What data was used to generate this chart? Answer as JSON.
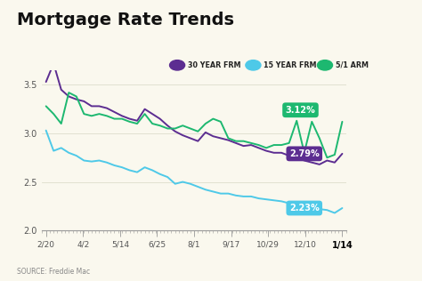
{
  "title": "Mortgage Rate Trends",
  "background_color": "#faf8ee",
  "source_text": "SOURCE: Freddie Mac",
  "x_labels": [
    "2/20",
    "4/2",
    "5/14",
    "6/25",
    "8/1",
    "9/17",
    "10/29",
    "12/10",
    "1/14"
  ],
  "ylim": [
    2.0,
    3.65
  ],
  "yticks": [
    2.0,
    2.5,
    3.0,
    3.5
  ],
  "legend_items": [
    "30 YEAR FRM",
    "15 YEAR FRM",
    "5/1 ARM"
  ],
  "legend_colors": [
    "#5c2d91",
    "#4ec9e8",
    "#1db870"
  ],
  "line_colors": [
    "#5c2d91",
    "#4ec9e8",
    "#1db870"
  ],
  "ann_colors": [
    "#1db870",
    "#5c2d91",
    "#4ec9e8"
  ],
  "ann_texts": [
    "3.12%",
    "2.79%",
    "2.23%"
  ],
  "ann_yvals": [
    3.12,
    2.79,
    2.23
  ],
  "series_30yr": [
    3.53,
    3.72,
    3.45,
    3.38,
    3.35,
    3.33,
    3.28,
    3.28,
    3.26,
    3.22,
    3.18,
    3.15,
    3.13,
    3.25,
    3.2,
    3.15,
    3.08,
    3.02,
    2.98,
    2.95,
    2.92,
    3.01,
    2.97,
    2.95,
    2.93,
    2.9,
    2.87,
    2.88,
    2.85,
    2.82,
    2.8,
    2.8,
    2.77,
    2.75,
    2.72,
    2.7,
    2.68,
    2.72,
    2.7,
    2.79
  ],
  "series_15yr": [
    3.03,
    2.82,
    2.85,
    2.8,
    2.77,
    2.72,
    2.71,
    2.72,
    2.7,
    2.67,
    2.65,
    2.62,
    2.6,
    2.65,
    2.62,
    2.58,
    2.55,
    2.48,
    2.5,
    2.48,
    2.45,
    2.42,
    2.4,
    2.38,
    2.38,
    2.36,
    2.35,
    2.35,
    2.33,
    2.32,
    2.31,
    2.3,
    2.28,
    2.27,
    2.25,
    2.23,
    2.22,
    2.21,
    2.18,
    2.23
  ],
  "series_51arm": [
    3.28,
    3.2,
    3.1,
    3.42,
    3.38,
    3.2,
    3.18,
    3.2,
    3.18,
    3.15,
    3.15,
    3.12,
    3.1,
    3.2,
    3.1,
    3.08,
    3.05,
    3.05,
    3.08,
    3.05,
    3.02,
    3.1,
    3.15,
    3.12,
    2.95,
    2.92,
    2.92,
    2.9,
    2.88,
    2.85,
    2.88,
    2.88,
    2.9,
    3.13,
    2.8,
    3.12,
    2.95,
    2.75,
    2.78,
    3.12
  ]
}
